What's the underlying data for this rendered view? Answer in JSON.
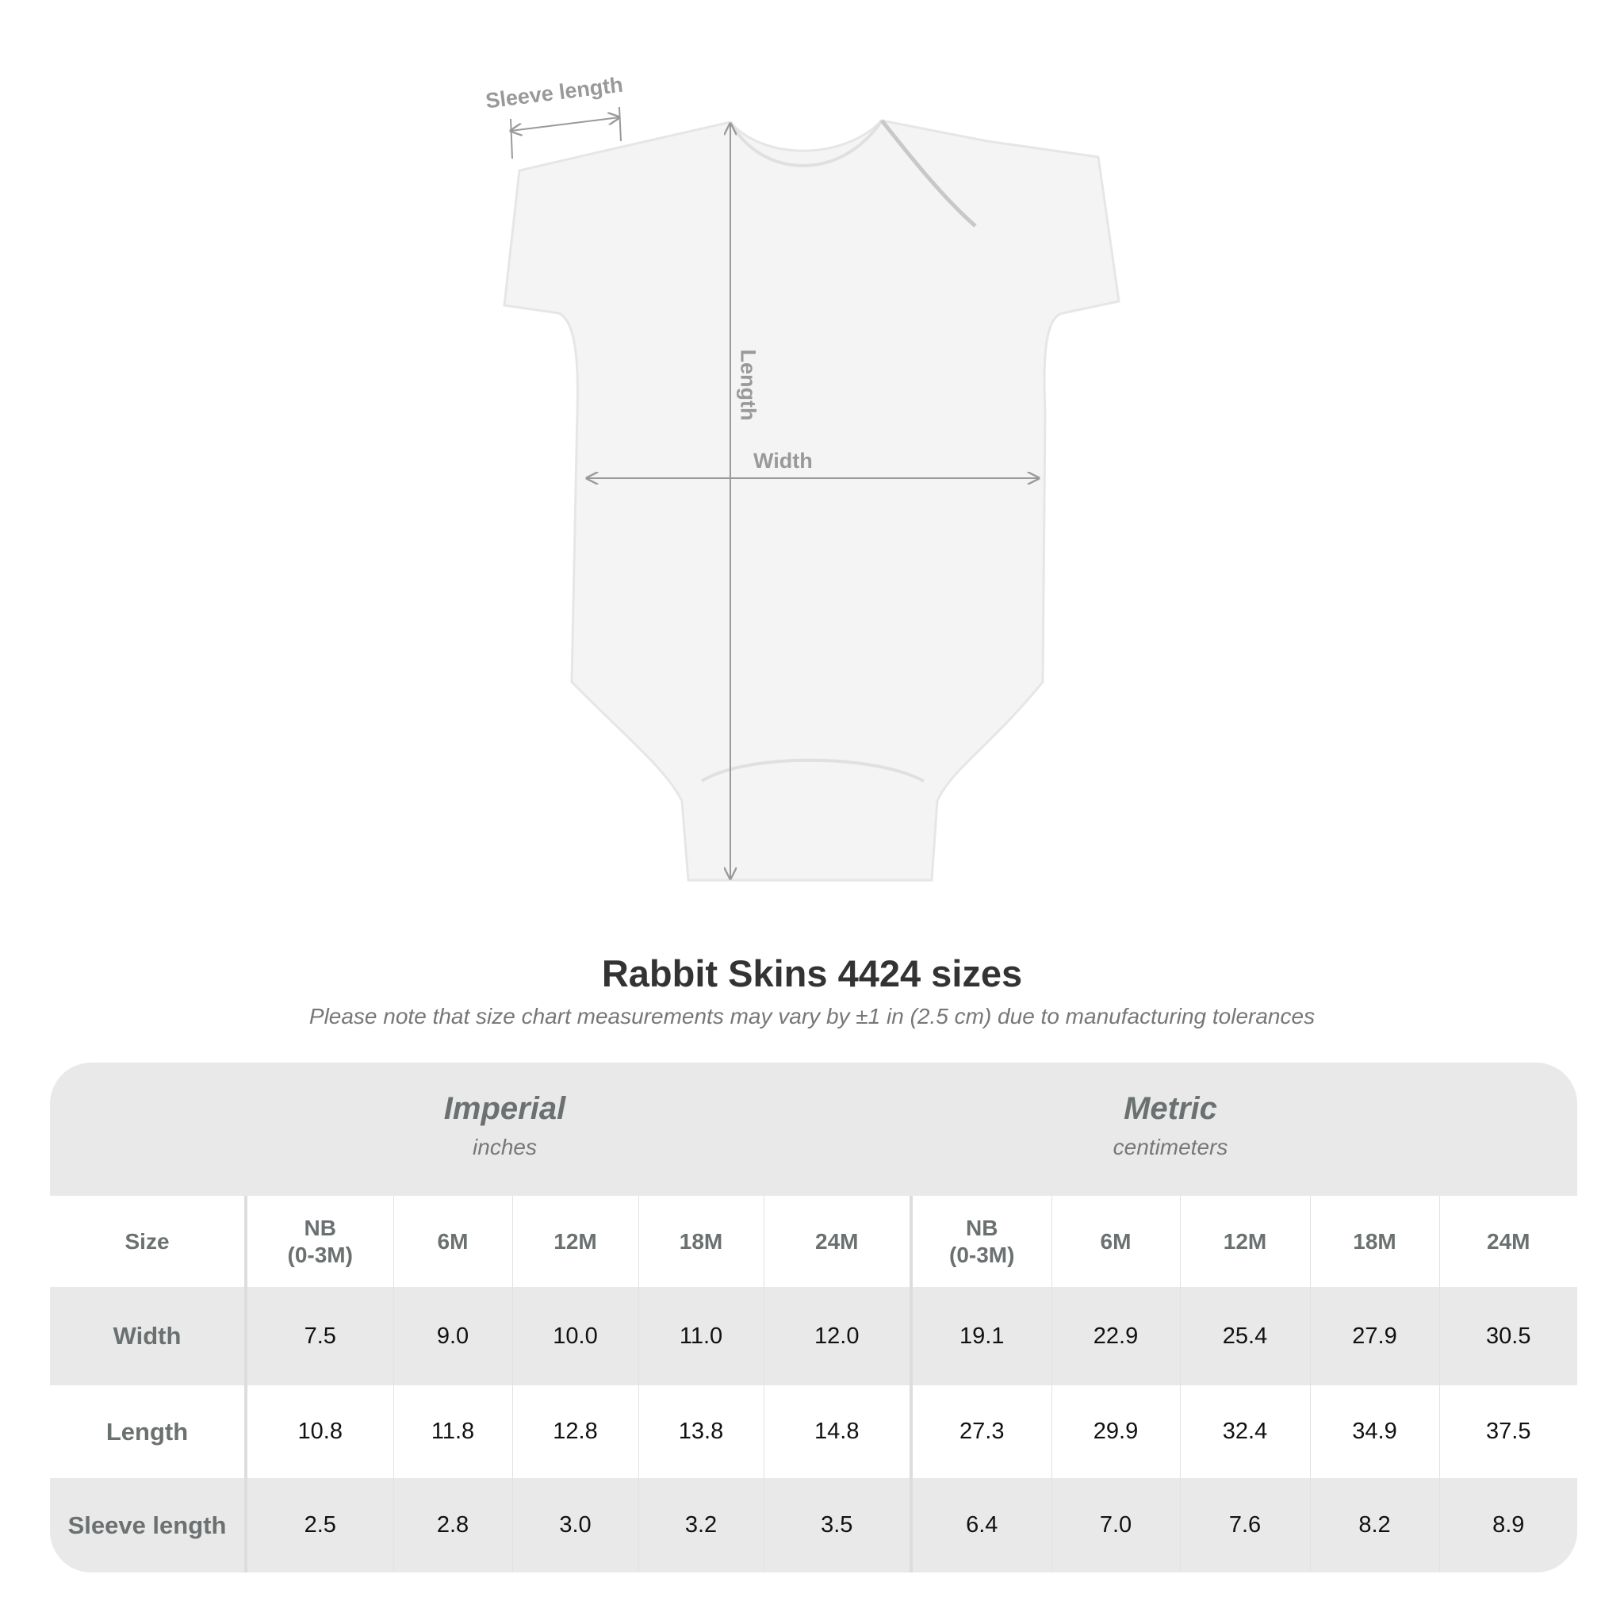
{
  "diagram": {
    "labels": {
      "sleeve_length": "Sleeve length",
      "length": "Length",
      "width": "Width"
    },
    "garment_color": "#f4f4f4",
    "line_color": "#9a9a9a"
  },
  "title": "Rabbit Skins 4424 sizes",
  "subtitle": "Please note that size chart measurements may vary by ±1 in (2.5 cm) due to manufacturing tolerances",
  "table": {
    "imperial": {
      "title": "Imperial",
      "unit": "inches"
    },
    "metric": {
      "title": "Metric",
      "unit": "centimeters"
    },
    "size_label": "Size",
    "sizes": [
      "NB\n(0-3M)",
      "6M",
      "12M",
      "18M",
      "24M"
    ],
    "rows": [
      {
        "label": "Width",
        "imperial": [
          "7.5",
          "9.0",
          "10.0",
          "11.0",
          "12.0"
        ],
        "metric": [
          "19.1",
          "22.9",
          "25.4",
          "27.9",
          "30.5"
        ]
      },
      {
        "label": "Length",
        "imperial": [
          "10.8",
          "11.8",
          "12.8",
          "13.8",
          "14.8"
        ],
        "metric": [
          "27.3",
          "29.9",
          "32.4",
          "34.9",
          "37.5"
        ]
      },
      {
        "label": "Sleeve length",
        "imperial": [
          "2.5",
          "2.8",
          "3.0",
          "3.2",
          "3.5"
        ],
        "metric": [
          "6.4",
          "7.0",
          "7.6",
          "8.2",
          "8.9"
        ]
      }
    ],
    "colors": {
      "header_bg": "#e9e9e9",
      "label_text": "#6b7070"
    }
  }
}
